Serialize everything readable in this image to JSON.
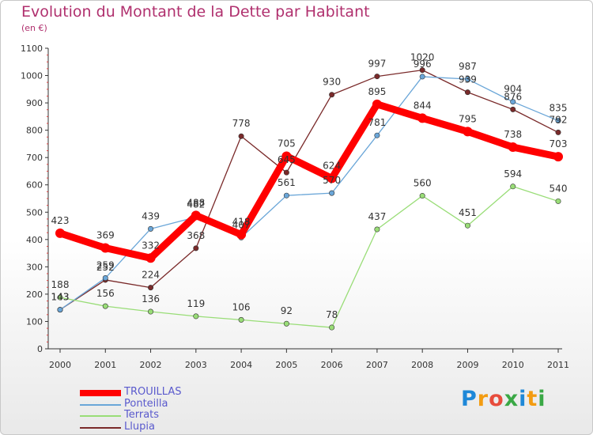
{
  "header": {
    "title": "Evolution du Montant de la Dette par Habitant",
    "subtitle": "(en €)"
  },
  "logo": {
    "text": "Proxiti",
    "colors": [
      "#1e88d8",
      "#f39c12",
      "#e74c3c",
      "#3aa845",
      "#1e88d8",
      "#f39c12",
      "#3aa845"
    ]
  },
  "chart_data": {
    "type": "line",
    "title": "Evolution du Montant de la Dette par Habitant",
    "subtitle": "(en €)",
    "xlabel": "",
    "ylabel": "",
    "ylim": [
      0,
      1100
    ],
    "yticks": [
      0,
      100,
      200,
      300,
      400,
      500,
      600,
      700,
      800,
      900,
      1000,
      1100
    ],
    "grid": false,
    "legend_position": "bottom-left",
    "x": [
      "2000",
      "2001",
      "2002",
      "2003",
      "2004",
      "2005",
      "2006",
      "2007",
      "2008",
      "2009",
      "2010",
      "2011"
    ],
    "series": [
      {
        "name": "TROUILLAS",
        "color": "#ff0000",
        "values": [
          423,
          369,
          332,
          488,
          418,
          705,
          624,
          895,
          844,
          795,
          738,
          703
        ]
      },
      {
        "name": "Ponteilla",
        "color": "#6aa6d8",
        "values": [
          143,
          259,
          439,
          482,
          407,
          561,
          570,
          781,
          996,
          987,
          904,
          835
        ]
      },
      {
        "name": "Terrats",
        "color": "#99dd77",
        "values": [
          188,
          156,
          136,
          119,
          106,
          92,
          78,
          437,
          560,
          451,
          594,
          540
        ]
      },
      {
        "name": "Llupia",
        "color": "#7a2a2a",
        "values": [
          143,
          252,
          224,
          368,
          778,
          645,
          930,
          997,
          1020,
          939,
          876,
          792
        ]
      }
    ]
  }
}
